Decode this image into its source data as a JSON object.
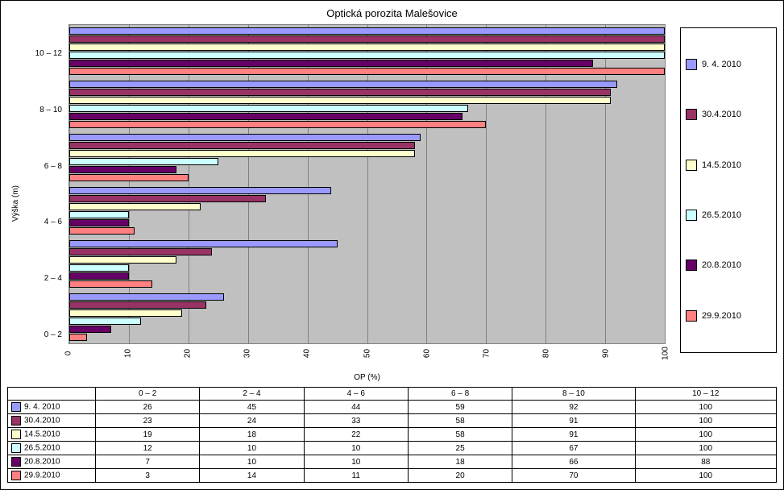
{
  "title": "Optická porozita Malešovice",
  "chart": {
    "type": "horizontal-grouped-bar",
    "xlabel": "OP (%)",
    "ylabel": "Výška (m)",
    "xlim": [
      0,
      100
    ],
    "xtick_step": 10,
    "xticks": [
      0,
      10,
      20,
      30,
      40,
      50,
      60,
      70,
      80,
      90,
      100
    ],
    "background_color": "#c0c0c0",
    "grid_color": "#808080",
    "bar_border": "#000000",
    "categories": [
      "0 – 2",
      "2 – 4",
      "4 – 6",
      "6 – 8",
      "8 – 10",
      "10 – 12"
    ],
    "series": [
      {
        "key": "s1",
        "label": "9. 4. 2010",
        "color": "#9999ff",
        "values": [
          26,
          45,
          44,
          59,
          92,
          100
        ]
      },
      {
        "key": "s2",
        "label": "30.4.2010",
        "color": "#993366",
        "values": [
          23,
          24,
          33,
          58,
          91,
          100
        ]
      },
      {
        "key": "s3",
        "label": "14.5.2010",
        "color": "#ffffcc",
        "values": [
          19,
          18,
          22,
          58,
          91,
          100
        ]
      },
      {
        "key": "s4",
        "label": "26.5.2010",
        "color": "#ccffff",
        "values": [
          12,
          10,
          10,
          25,
          67,
          100
        ]
      },
      {
        "key": "s5",
        "label": "20.8.2010",
        "color": "#660066",
        "values": [
          7,
          10,
          10,
          18,
          66,
          88
        ]
      },
      {
        "key": "s6",
        "label": "29.9.2010",
        "color": "#ff8080",
        "values": [
          3,
          14,
          11,
          20,
          70,
          100
        ]
      }
    ]
  },
  "table": {
    "columns": [
      "0 – 2",
      "2 – 4",
      "4 – 6",
      "6 – 8",
      "8 – 10",
      "10 – 12"
    ],
    "rows": [
      {
        "label": "9. 4. 2010",
        "swatch": "#9999ff",
        "cells": [
          26,
          45,
          44,
          59,
          92,
          100
        ]
      },
      {
        "label": "30.4.2010",
        "swatch": "#993366",
        "cells": [
          23,
          24,
          33,
          58,
          91,
          100
        ]
      },
      {
        "label": "14.5.2010",
        "swatch": "#ffffcc",
        "cells": [
          19,
          18,
          22,
          58,
          91,
          100
        ]
      },
      {
        "label": "26.5.2010",
        "swatch": "#ccffff",
        "cells": [
          12,
          10,
          10,
          25,
          67,
          100
        ]
      },
      {
        "label": "20.8.2010",
        "swatch": "#660066",
        "cells": [
          7,
          10,
          10,
          18,
          66,
          88
        ]
      },
      {
        "label": "29.9.2010",
        "swatch": "#ff8080",
        "cells": [
          3,
          14,
          11,
          20,
          70,
          100
        ]
      }
    ]
  }
}
